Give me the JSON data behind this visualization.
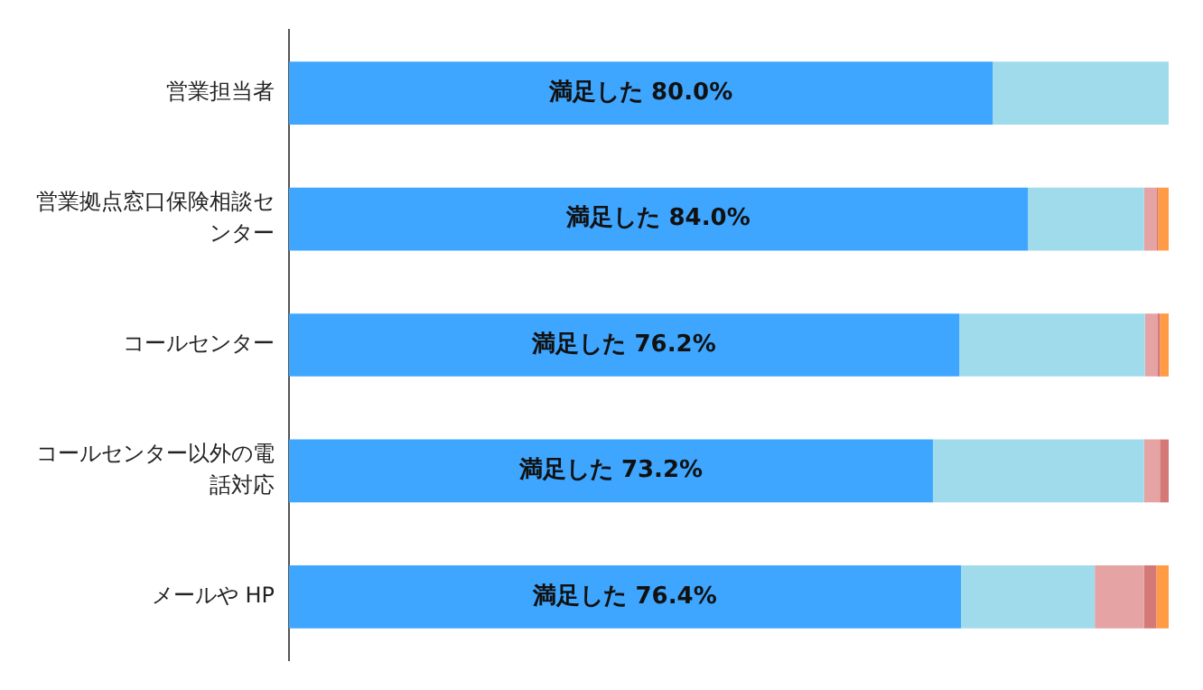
{
  "chart_data": {
    "type": "bar",
    "orientation": "horizontal",
    "stacked": true,
    "categories": [
      "営業担当者",
      "営業拠点窓口保険相談センター",
      "コールセンター",
      "コールセンター以外の電話対応",
      "メールや HP"
    ],
    "series": [
      {
        "color": "#3ea6ff",
        "values": [
          80.0,
          84.0,
          76.2,
          73.2,
          76.4
        ],
        "value_labels": [
          "満足した 80.0%",
          "満足した 84.0%",
          "満足した 76.2%",
          "満足した 73.2%",
          "満足した 76.4%"
        ]
      },
      {
        "color": "#a0dbec",
        "values": [
          20.0,
          13.2,
          21.1,
          24.0,
          15.2
        ]
      },
      {
        "color": "#e5a3a3",
        "values": [
          0,
          1.4,
          1.4,
          1.8,
          5.6
        ]
      },
      {
        "color": "#d47878",
        "values": [
          0,
          0.2,
          0.3,
          1.0,
          1.4
        ]
      },
      {
        "color": "#ff9a45",
        "values": [
          0,
          1.2,
          1.0,
          0,
          1.4
        ]
      }
    ],
    "xlim": [
      0,
      100
    ],
    "tick_labels": "y",
    "grid": false,
    "legend": false
  }
}
